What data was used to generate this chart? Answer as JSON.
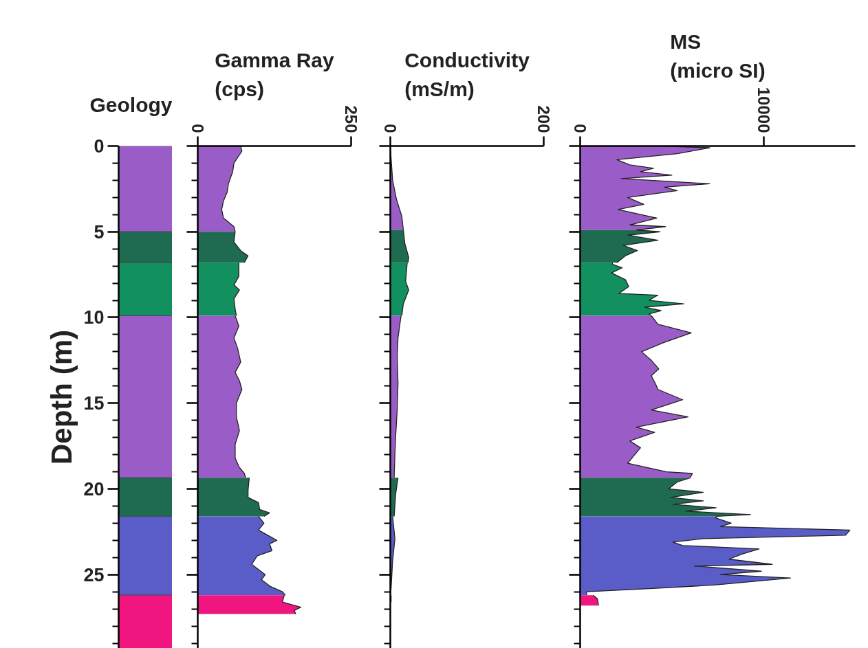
{
  "chart_data": [
    {
      "type": "bar",
      "title": "Geology",
      "ylabel": "Depth (m)",
      "categories": [
        null
      ],
      "stacked": true,
      "ylim": [
        29.3,
        0
      ],
      "yticks": [
        0,
        {
          "value": 1,
          "label": null
        },
        {
          "value": 2,
          "label": null
        },
        {
          "value": 3,
          "label": null
        },
        {
          "value": 4,
          "label": null
        },
        5,
        {
          "value": 6,
          "label": null
        },
        {
          "value": 7,
          "label": null
        },
        {
          "value": 8,
          "label": null
        },
        {
          "value": 9,
          "label": null
        },
        10,
        {
          "value": 11,
          "label": null
        },
        {
          "value": 12,
          "label": null
        },
        {
          "value": 13,
          "label": null
        },
        {
          "value": 14,
          "label": null
        },
        15,
        {
          "value": 16,
          "label": null
        },
        {
          "value": 17,
          "label": null
        },
        {
          "value": 18,
          "label": null
        },
        {
          "value": 19,
          "label": null
        },
        20,
        {
          "value": 21,
          "label": null
        },
        {
          "value": 22,
          "label": null
        },
        {
          "value": 23,
          "label": null
        },
        {
          "value": 24,
          "label": null
        },
        25,
        {
          "value": 26,
          "label": null
        },
        {
          "value": 27,
          "label": null
        },
        {
          "value": 28,
          "label": null
        },
        {
          "value": 29,
          "label": null
        }
      ],
      "tick_labels": "y",
      "series": [
        {
          "color": "#9a5cc6",
          "values": [
            5.0
          ]
        },
        {
          "color": "#1f6b52",
          "values": [
            1.8
          ]
        },
        {
          "color": "#12905f",
          "values": [
            3.1
          ]
        },
        {
          "color": "#9a5cc6",
          "values": [
            9.45
          ]
        },
        {
          "color": "#1f6b52",
          "values": [
            2.25
          ]
        },
        {
          "color": "#5a5cc8",
          "values": [
            4.6
          ]
        },
        {
          "color": "#f0157f",
          "values": [
            3.1
          ]
        }
      ]
    },
    {
      "type": "area",
      "orientation": "horizontal",
      "title": "Gamma Ray (cps)",
      "xlim": [
        0,
        250
      ],
      "xticks": [
        0,
        250
      ],
      "ylim": [
        29.3,
        0
      ],
      "yticks": [
        0,
        {
          "value": 1,
          "label": null
        },
        {
          "value": 2,
          "label": null
        },
        {
          "value": 3,
          "label": null
        },
        {
          "value": 4,
          "label": null
        },
        5,
        {
          "value": 6,
          "label": null
        },
        {
          "value": 7,
          "label": null
        },
        {
          "value": 8,
          "label": null
        },
        {
          "value": 9,
          "label": null
        },
        10,
        {
          "value": 11,
          "label": null
        },
        {
          "value": 12,
          "label": null
        },
        {
          "value": 13,
          "label": null
        },
        {
          "value": 14,
          "label": null
        },
        15,
        {
          "value": 16,
          "label": null
        },
        {
          "value": 17,
          "label": null
        },
        {
          "value": 18,
          "label": null
        },
        {
          "value": 19,
          "label": null
        },
        20,
        {
          "value": 21,
          "label": null
        },
        {
          "value": 22,
          "label": null
        },
        {
          "value": 23,
          "label": null
        },
        {
          "value": 24,
          "label": null
        },
        25,
        {
          "value": 26,
          "label": null
        },
        {
          "value": 27,
          "label": null
        },
        {
          "value": 28,
          "label": null
        },
        {
          "value": 29,
          "label": null
        }
      ],
      "tick_labels": "x",
      "series": [
        {
          "color": "#9a5cc6",
          "x": [
            0,
            0.3,
            1.0,
            1.5,
            2.2,
            2.7,
            3.2,
            3.7,
            4.2,
            4.7,
            5.0
          ],
          "values": [
            70,
            72,
            59,
            57,
            50,
            48,
            42,
            39,
            42,
            59,
            61
          ]
        },
        {
          "color": "#1f6b52",
          "x": [
            5.0,
            5.6,
            6.1,
            6.4,
            6.8
          ],
          "values": [
            61,
            59,
            70,
            82,
            76
          ]
        },
        {
          "color": "#12905f",
          "x": [
            6.8,
            7.6,
            8.1,
            8.4,
            8.9,
            9.5,
            9.9
          ],
          "values": [
            67,
            67,
            59,
            68,
            59,
            61,
            63
          ]
        },
        {
          "color": "#9a5cc6",
          "x": [
            9.9,
            10.5,
            11.2,
            11.8,
            12.6,
            13.2,
            13.7,
            14.2,
            15.0,
            15.8,
            16.6,
            17.4,
            18.2,
            18.7,
            19.1,
            19.35
          ],
          "values": [
            61,
            67,
            59,
            65,
            70,
            61,
            68,
            72,
            63,
            63,
            68,
            61,
            61,
            67,
            76,
            78
          ]
        },
        {
          "color": "#1f6b52",
          "x": [
            19.35,
            20.1,
            20.5,
            20.8,
            21.2,
            21.4,
            21.6
          ],
          "values": [
            84,
            82,
            82,
            99,
            101,
            117,
            108
          ]
        },
        {
          "color": "#5a5cc8",
          "x": [
            21.6,
            22.0,
            22.4,
            23.0,
            23.2,
            23.6,
            23.9,
            24.4,
            25.0,
            25.3,
            25.7,
            26.0,
            26.2
          ],
          "values": [
            99,
            108,
            99,
            129,
            117,
            121,
            97,
            88,
            110,
            104,
            119,
            138,
            143
          ]
        },
        {
          "color": "#f0157f",
          "x": [
            26.2,
            26.6,
            26.9,
            27.1,
            27.3
          ],
          "values": [
            141,
            138,
            168,
            157,
            160
          ]
        }
      ]
    },
    {
      "type": "area",
      "orientation": "horizontal",
      "title": "Conductivity (mS/m)",
      "xlim": [
        0,
        200
      ],
      "xticks": [
        0,
        200
      ],
      "ylim": [
        29.3,
        0
      ],
      "yticks": [
        0,
        {
          "value": 1,
          "label": null
        },
        {
          "value": 2,
          "label": null
        },
        {
          "value": 3,
          "label": null
        },
        {
          "value": 4,
          "label": null
        },
        5,
        {
          "value": 6,
          "label": null
        },
        {
          "value": 7,
          "label": null
        },
        {
          "value": 8,
          "label": null
        },
        {
          "value": 9,
          "label": null
        },
        10,
        {
          "value": 11,
          "label": null
        },
        {
          "value": 12,
          "label": null
        },
        {
          "value": 13,
          "label": null
        },
        {
          "value": 14,
          "label": null
        },
        15,
        {
          "value": 16,
          "label": null
        },
        {
          "value": 17,
          "label": null
        },
        {
          "value": 18,
          "label": null
        },
        {
          "value": 19,
          "label": null
        },
        20,
        {
          "value": 21,
          "label": null
        },
        {
          "value": 22,
          "label": null
        },
        {
          "value": 23,
          "label": null
        },
        {
          "value": 24,
          "label": null
        },
        25,
        {
          "value": 26,
          "label": null
        },
        {
          "value": 27,
          "label": null
        },
        {
          "value": 28,
          "label": null
        },
        {
          "value": 29,
          "label": null
        }
      ],
      "tick_labels": "x",
      "series": [
        {
          "color": "#9a5cc6",
          "x": [
            0,
            0.7,
            2.0,
            3.1,
            4.1,
            4.9
          ],
          "values": [
            0,
            1,
            3,
            8,
            15,
            17
          ]
        },
        {
          "color": "#1f6b52",
          "x": [
            4.9,
            5.7,
            6.5,
            6.8
          ],
          "values": [
            17,
            19,
            24,
            23
          ]
        },
        {
          "color": "#12905f",
          "x": [
            6.8,
            7.9,
            8.4,
            9.2,
            9.9
          ],
          "values": [
            22,
            20,
            24,
            17,
            15
          ]
        },
        {
          "color": "#9a5cc6",
          "x": [
            9.9,
            11.2,
            12.3,
            13.8,
            15.4,
            16.9,
            18.0,
            19.35
          ],
          "values": [
            14,
            10,
            9,
            10,
            9,
            7,
            6,
            5
          ]
        },
        {
          "color": "#1f6b52",
          "x": [
            19.35,
            20.3,
            21.6
          ],
          "values": [
            10,
            7,
            5
          ]
        },
        {
          "color": "#5a5cc8",
          "x": [
            21.6,
            22.9,
            24.2,
            25.8,
            26.2
          ],
          "values": [
            3,
            6,
            3,
            1,
            0
          ]
        },
        {
          "color": "#f0157f",
          "x": [
            26.2,
            26.6
          ],
          "values": [
            1,
            1
          ]
        }
      ]
    },
    {
      "type": "area",
      "orientation": "horizontal",
      "title": "MS (micro SI)",
      "xlim": [
        0,
        15000
      ],
      "xticks": [
        0,
        10000
      ],
      "ylim": [
        29.3,
        0
      ],
      "yticks": [
        0,
        {
          "value": 1,
          "label": null
        },
        {
          "value": 2,
          "label": null
        },
        {
          "value": 3,
          "label": null
        },
        {
          "value": 4,
          "label": null
        },
        5,
        {
          "value": 6,
          "label": null
        },
        {
          "value": 7,
          "label": null
        },
        {
          "value": 8,
          "label": null
        },
        {
          "value": 9,
          "label": null
        },
        10,
        {
          "value": 11,
          "label": null
        },
        {
          "value": 12,
          "label": null
        },
        {
          "value": 13,
          "label": null
        },
        {
          "value": 14,
          "label": null
        },
        15,
        {
          "value": 16,
          "label": null
        },
        {
          "value": 17,
          "label": null
        },
        {
          "value": 18,
          "label": null
        },
        {
          "value": 19,
          "label": null
        },
        20,
        {
          "value": 21,
          "label": null
        },
        {
          "value": 22,
          "label": null
        },
        {
          "value": 23,
          "label": null
        },
        {
          "value": 24,
          "label": null
        },
        25,
        {
          "value": 26,
          "label": null
        },
        {
          "value": 27,
          "label": null
        },
        {
          "value": 28,
          "label": null
        },
        {
          "value": 29,
          "label": null
        }
      ],
      "tick_labels": "x",
      "series": [
        {
          "color": "#9a5cc6",
          "x": [
            0,
            0.1,
            0.45,
            0.8,
            1.1,
            1.3,
            1.5,
            1.7,
            1.9,
            2.2,
            2.4,
            2.6,
            3.0,
            3.4,
            3.7,
            4.2,
            4.6,
            4.7,
            4.9
          ],
          "values": [
            4470,
            7060,
            5290,
            2000,
            2700,
            4000,
            3290,
            5000,
            2240,
            7060,
            4590,
            5290,
            2590,
            3470,
            2060,
            4180,
            2710,
            4650,
            3060
          ]
        },
        {
          "color": "#1f6b52",
          "x": [
            4.9,
            5.0,
            5.2,
            5.5,
            5.8,
            6.1,
            6.4,
            6.8
          ],
          "values": [
            3060,
            4350,
            2590,
            4240,
            2350,
            3120,
            2470,
            2000
          ]
        },
        {
          "color": "#12905f",
          "x": [
            6.8,
            6.9,
            7.1,
            7.4,
            7.8,
            8.2,
            8.6,
            8.7,
            9.0,
            9.2,
            9.4,
            9.6,
            9.8,
            9.9
          ],
          "values": [
            1760,
            1760,
            2290,
            1710,
            2470,
            2650,
            2120,
            4240,
            3760,
            5650,
            3530,
            4410,
            3760,
            3880
          ]
        },
        {
          "color": "#9a5cc6",
          "x": [
            9.9,
            10.4,
            10.9,
            11.5,
            12.0,
            12.5,
            13.0,
            13.4,
            13.9,
            14.2,
            14.8,
            15.4,
            15.8,
            16.4,
            16.7,
            17.2,
            17.6,
            18.5,
            19.0,
            19.1,
            19.35
          ],
          "values": [
            3880,
            4240,
            6060,
            4470,
            3350,
            3880,
            4290,
            3880,
            4120,
            4240,
            5590,
            3880,
            5880,
            3060,
            4060,
            2710,
            3290,
            2590,
            4710,
            6120,
            6000
          ]
        },
        {
          "color": "#1f6b52",
          "x": [
            19.35,
            19.6,
            20.0,
            20.2,
            20.5,
            20.7,
            20.9,
            21.1,
            21.3,
            21.5,
            21.6
          ],
          "values": [
            6000,
            5290,
            4820,
            6710,
            4940,
            6710,
            5060,
            7410,
            5760,
            9290,
            7410
          ]
        },
        {
          "color": "#5a5cc8",
          "x": [
            21.6,
            21.7,
            22.0,
            22.2,
            22.4,
            22.7,
            22.9,
            23.1,
            23.3,
            23.5,
            23.8,
            24.1,
            24.4,
            24.5,
            24.8,
            25.0,
            25.2,
            25.6,
            25.8,
            26.0,
            26.2
          ],
          "values": [
            7410,
            7410,
            8240,
            7650,
            14710,
            14470,
            6710,
            5060,
            5590,
            9760,
            8820,
            8120,
            10470,
            6240,
            9880,
            7650,
            11470,
            7410,
            4120,
            350,
            350
          ]
        },
        {
          "color": "#f0157f",
          "x": [
            26.2,
            26.4,
            26.8
          ],
          "values": [
            710,
            940,
            1000
          ]
        }
      ]
    }
  ]
}
